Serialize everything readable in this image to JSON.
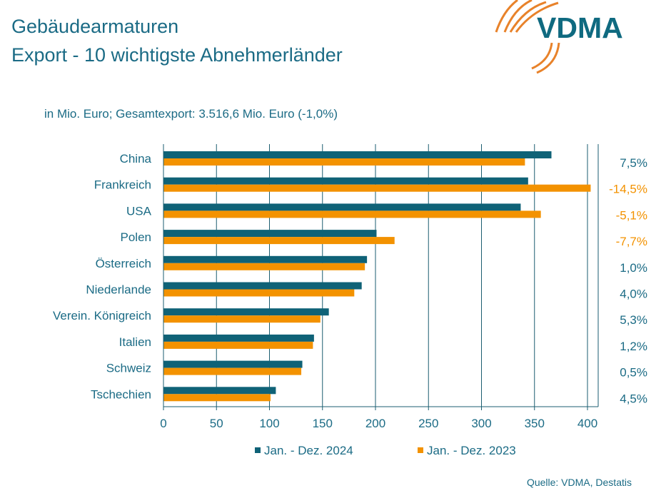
{
  "title_line1": "Gebäudearmaturen",
  "title_line2": "Export - 10 wichtigste Abnehmerländer",
  "logo_text": "VDMA",
  "source": "Quelle: VDMA, Destatis",
  "colors": {
    "series_2024": "#0f6277",
    "series_2023": "#f39200",
    "text": "#1b6b85"
  },
  "chart_data": {
    "type": "bar",
    "orientation": "horizontal",
    "subtitle": "in Mio. Euro; Gesamtexport: 3.516,6 Mio. Euro (-1,0%)",
    "categories": [
      "China",
      "Frankreich",
      "USA",
      "Polen",
      "Österreich",
      "Niederlande",
      "Verein. Königreich",
      "Italien",
      "Schweiz",
      "Tschechien"
    ],
    "series": [
      {
        "name": "Jan. - Dez. 2024",
        "values": [
          366,
          344,
          337,
          201,
          192,
          187,
          156,
          142,
          131,
          106
        ]
      },
      {
        "name": "Jan. - Dez. 2023",
        "values": [
          341,
          403,
          356,
          218,
          190,
          180,
          148,
          141,
          130,
          101
        ]
      }
    ],
    "change_labels": [
      "7,5%",
      "-14,5%",
      "-5,1%",
      "-7,7%",
      "1,0%",
      "4,0%",
      "5,3%",
      "1,2%",
      "0,5%",
      "4,5%"
    ],
    "xlim": [
      0,
      420
    ],
    "xticks": [
      0,
      50,
      100,
      150,
      200,
      250,
      300,
      350,
      400
    ],
    "grid": true,
    "legend": "bottom"
  }
}
